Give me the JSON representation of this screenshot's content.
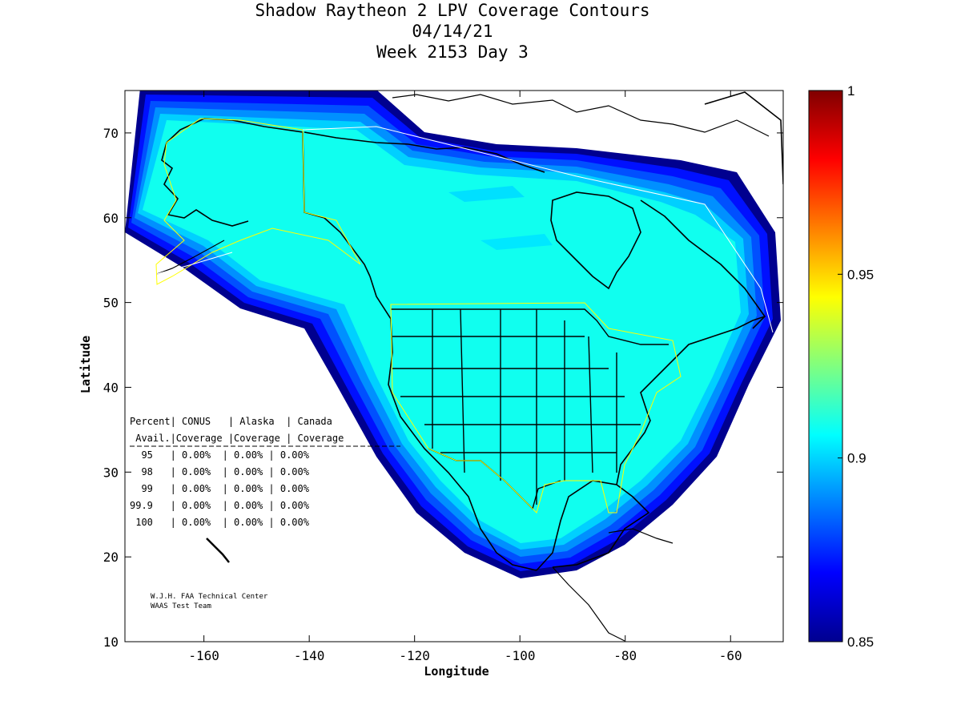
{
  "title_lines": [
    "Shadow Raytheon 2 LPV Coverage Contours",
    "04/14/21",
    "Week 2153 Day 3"
  ],
  "chart_data": {
    "type": "heatmap",
    "title": "Shadow Raytheon 2 LPV Coverage Contours",
    "subtitle": [
      "04/14/21",
      "Week 2153 Day 3"
    ],
    "xlabel": "Longitude",
    "ylabel": "Latitude",
    "xlim": [
      -175,
      -50
    ],
    "ylim": [
      10,
      75
    ],
    "x_ticks": [
      -160,
      -140,
      -120,
      -100,
      -80,
      -60
    ],
    "y_ticks": [
      10,
      20,
      30,
      40,
      50,
      60,
      70
    ],
    "grid": false,
    "colorbar": {
      "min": 0.85,
      "max": 1,
      "ticks": [
        0.85,
        0.9,
        0.95,
        1
      ],
      "tick_labels": [
        "0.85",
        "0.9",
        "0.95",
        "1"
      ],
      "colormap": "jet"
    },
    "dominant_value": 0.9,
    "contour_bands": [
      {
        "level": 0.85,
        "color": "#00008f"
      },
      {
        "level": 0.86,
        "color": "#0010ff"
      },
      {
        "level": 0.87,
        "color": "#0050ff"
      },
      {
        "level": 0.88,
        "color": "#0090ff"
      },
      {
        "level": 0.89,
        "color": "#00d0ff"
      },
      {
        "level": 0.9,
        "color": "#10ffef"
      }
    ],
    "stats_table": {
      "header_row1": "Percent| CONUS   | Alaska  | Canada",
      "header_row2": " Avail.|Coverage |Coverage | Coverage",
      "rows": [
        "  95   | 0.00%  | 0.00% | 0.00%",
        "  98   | 0.00%  | 0.00% | 0.00%",
        "  99   | 0.00%  | 0.00% | 0.00%",
        "99.9   | 0.00%  | 0.00% | 0.00%",
        " 100   | 0.00%  | 0.00% | 0.00%"
      ]
    },
    "credits": [
      "W.J.H. FAA Technical Center",
      "WAAS Test Team"
    ]
  },
  "colors": {
    "background": "#ffffff",
    "coastline": "#000000",
    "service_boundary": "#ffff00",
    "fir_boundary": "#ffffff"
  }
}
